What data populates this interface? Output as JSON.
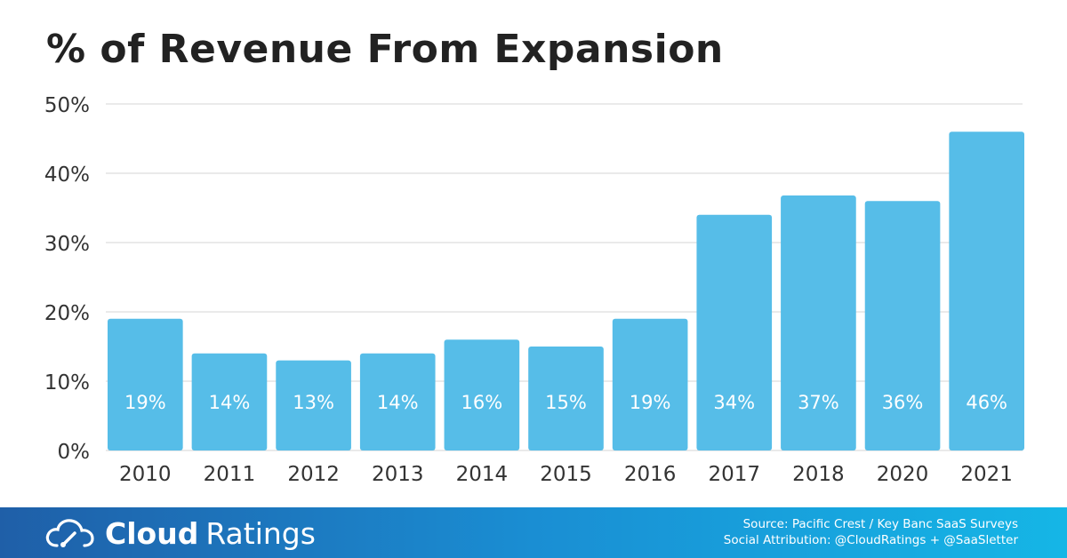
{
  "chart_data": {
    "type": "bar",
    "title": "% of Revenue From Expansion",
    "categories": [
      "2010",
      "2011",
      "2012",
      "2013",
      "2014",
      "2015",
      "2016",
      "2017",
      "2018",
      "2020",
      "2021"
    ],
    "values": [
      19,
      14,
      13,
      14,
      16,
      15,
      19,
      34,
      36.8,
      36,
      46
    ],
    "data_labels": [
      "19%",
      "14%",
      "13%",
      "14%",
      "16%",
      "15%",
      "19%",
      "34%",
      "37%",
      "36%",
      "46%"
    ],
    "y_ticks": [
      0,
      10,
      20,
      30,
      40,
      50
    ],
    "y_tick_labels": [
      "0%",
      "10%",
      "20%",
      "30%",
      "40%",
      "50%"
    ],
    "ylim": [
      0,
      50
    ],
    "grid": true,
    "legend": "none",
    "bar_color": "#56bde8",
    "grid_color": "#d6d6d6",
    "label_color": "#ffffff"
  },
  "footer": {
    "brand_bold": "Cloud",
    "brand_light": "Ratings",
    "brand_icon": "cloud-gauge-icon",
    "source_line1": "Source: Pacific Crest / Key Banc SaaS Surveys",
    "source_line2": "Social Attribution: @CloudRatings + @SaaSletter"
  }
}
